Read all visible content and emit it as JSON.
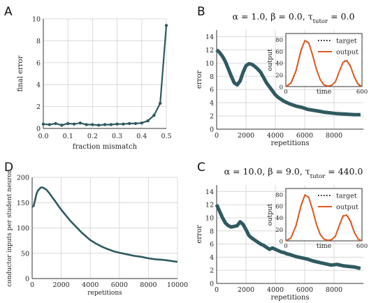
{
  "chart_data": [
    {
      "panel": "A",
      "type": "line",
      "xlabel": "fraction mismatch",
      "ylabel": "final error",
      "xlim": [
        0,
        0.5
      ],
      "ylim": [
        0,
        10
      ],
      "xticks": [
        "0.0",
        "0.1",
        "0.2",
        "0.3",
        "0.4",
        "0.5"
      ],
      "xtick_values": [
        0,
        0.1,
        0.2,
        0.3,
        0.4,
        0.5
      ],
      "yticks": [
        "0",
        "2",
        "4",
        "6",
        "8",
        "10"
      ],
      "ytick_values": [
        0,
        2,
        4,
        6,
        8,
        10
      ],
      "grid": true,
      "markers": true,
      "x": [
        0,
        0.025,
        0.05,
        0.075,
        0.1,
        0.125,
        0.15,
        0.175,
        0.2,
        0.225,
        0.25,
        0.275,
        0.3,
        0.325,
        0.35,
        0.375,
        0.4,
        0.425,
        0.45,
        0.475,
        0.5
      ],
      "values": [
        0.4,
        0.35,
        0.45,
        0.3,
        0.45,
        0.4,
        0.5,
        0.35,
        0.35,
        0.3,
        0.35,
        0.35,
        0.4,
        0.4,
        0.45,
        0.45,
        0.5,
        0.7,
        1.2,
        2.3,
        9.4
      ]
    },
    {
      "panel": "B",
      "type": "line",
      "title": "α = 1.0,  β = 0.0,  τ_tutor = 0.0",
      "xlabel": "repetitions",
      "ylabel": "error",
      "xlim": [
        0,
        10000
      ],
      "ylim": [
        0,
        15
      ],
      "xticks": [
        "0",
        "2000",
        "4000",
        "6000",
        "8000"
      ],
      "xtick_values": [
        0,
        2000,
        4000,
        6000,
        8000
      ],
      "yticks": [
        "0",
        "2",
        "4",
        "6",
        "8",
        "10",
        "12",
        "14"
      ],
      "ytick_values": [
        0,
        2,
        4,
        6,
        8,
        10,
        12,
        14
      ],
      "grid": true,
      "x": [
        0,
        200,
        400,
        600,
        800,
        1000,
        1200,
        1400,
        1600,
        1800,
        2000,
        2200,
        2400,
        2600,
        2800,
        3000,
        3200,
        3400,
        3600,
        3800,
        4000,
        4200,
        4400,
        4600,
        4800,
        5000,
        5400,
        5800,
        6200,
        6600,
        7000,
        7400,
        7800,
        8200,
        8600,
        9000,
        9400,
        9800
      ],
      "values": [
        12.0,
        11.6,
        11.0,
        10.2,
        9.1,
        8.0,
        7.0,
        6.7,
        7.3,
        8.6,
        9.6,
        9.9,
        9.8,
        9.5,
        9.1,
        8.6,
        7.8,
        7.0,
        6.4,
        5.8,
        5.2,
        4.8,
        4.5,
        4.2,
        4.0,
        3.8,
        3.5,
        3.3,
        3.0,
        2.85,
        2.7,
        2.55,
        2.45,
        2.35,
        2.3,
        2.25,
        2.2,
        2.2
      ],
      "inset": {
        "xlabel": "time",
        "ylabel": "output",
        "xlim": [
          0,
          600
        ],
        "ylim": [
          0,
          90
        ],
        "xticks": [
          "0",
          "600"
        ],
        "xtick_values": [
          0,
          600
        ],
        "yticks": [
          "0",
          "20",
          "40",
          "60",
          "80"
        ],
        "ytick_values": [
          0,
          20,
          40,
          60,
          80
        ],
        "legend": [
          "target",
          "output"
        ],
        "legend_position": "top-right",
        "series": [
          {
            "name": "target",
            "style": "dotted",
            "color": "#111111",
            "x": [
              0,
              40,
              80,
              120,
              150,
              180,
              210,
              240,
              270,
              300,
              330,
              360,
              390,
              420,
              450,
              480,
              510,
              540,
              570,
              600
            ],
            "values": [
              0,
              5,
              25,
              60,
              78,
              75,
              55,
              30,
              12,
              3,
              1,
              2,
              8,
              25,
              42,
              45,
              35,
              15,
              3,
              0
            ]
          },
          {
            "name": "output",
            "style": "solid",
            "color": "#e05a1e",
            "x": [
              0,
              40,
              80,
              120,
              150,
              180,
              210,
              240,
              270,
              300,
              330,
              360,
              390,
              420,
              450,
              480,
              510,
              540,
              570,
              600
            ],
            "values": [
              0,
              6,
              27,
              62,
              78,
              74,
              54,
              30,
              12,
              3,
              1,
              2,
              8,
              25,
              41,
              44,
              34,
              16,
              4,
              0
            ]
          }
        ]
      }
    },
    {
      "panel": "C",
      "type": "line",
      "title": "α = 10.0,  β = 9.0,  τ_tutor = 440.0",
      "xlabel": "repetitions",
      "ylabel": "error",
      "xlim": [
        0,
        10000
      ],
      "ylim": [
        0,
        15
      ],
      "xticks": [
        "0",
        "2000",
        "4000",
        "6000",
        "8000"
      ],
      "xtick_values": [
        0,
        2000,
        4000,
        6000,
        8000
      ],
      "yticks": [
        "0",
        "2",
        "4",
        "6",
        "8",
        "10",
        "12",
        "14"
      ],
      "ytick_values": [
        0,
        2,
        4,
        6,
        8,
        10,
        12,
        14
      ],
      "grid": true,
      "x": [
        0,
        200,
        400,
        600,
        800,
        1000,
        1200,
        1400,
        1600,
        1800,
        2000,
        2200,
        2400,
        2600,
        2800,
        3000,
        3200,
        3400,
        3600,
        3800,
        4000,
        4200,
        4400,
        4600,
        4800,
        5000,
        5400,
        5800,
        6200,
        6600,
        7000,
        7400,
        7800,
        8200,
        8600,
        9000,
        9400,
        9800
      ],
      "values": [
        12.0,
        11.0,
        10.0,
        9.2,
        8.8,
        8.6,
        8.7,
        8.8,
        9.4,
        9.0,
        8.2,
        7.3,
        6.9,
        6.6,
        6.3,
        6.0,
        5.8,
        5.5,
        5.2,
        5.4,
        5.2,
        5.0,
        4.8,
        4.7,
        4.5,
        4.4,
        4.1,
        3.9,
        3.7,
        3.4,
        3.2,
        3.0,
        2.8,
        2.9,
        2.7,
        2.6,
        2.5,
        2.3
      ],
      "inset": {
        "xlabel": "time",
        "ylabel": "output",
        "xlim": [
          0,
          600
        ],
        "ylim": [
          0,
          90
        ],
        "xticks": [
          "0",
          "600"
        ],
        "xtick_values": [
          0,
          600
        ],
        "yticks": [
          "0",
          "20",
          "40",
          "60",
          "80"
        ],
        "ytick_values": [
          0,
          20,
          40,
          60,
          80
        ],
        "legend": [
          "target",
          "output"
        ],
        "legend_position": "top-right",
        "series": [
          {
            "name": "target",
            "style": "dotted",
            "color": "#111111",
            "x": [
              0,
              40,
              80,
              120,
              150,
              180,
              210,
              240,
              270,
              300,
              330,
              360,
              390,
              420,
              450,
              480,
              510,
              540,
              570,
              600
            ],
            "values": [
              0,
              5,
              25,
              60,
              78,
              75,
              55,
              30,
              12,
              3,
              1,
              2,
              8,
              25,
              42,
              45,
              35,
              15,
              3,
              0
            ]
          },
          {
            "name": "output",
            "style": "solid",
            "color": "#e05a1e",
            "x": [
              0,
              40,
              80,
              120,
              150,
              180,
              210,
              240,
              270,
              300,
              330,
              360,
              390,
              420,
              450,
              480,
              510,
              540,
              570,
              600
            ],
            "values": [
              0,
              5,
              26,
              61,
              79,
              75,
              54,
              29,
              11,
              3,
              1,
              2,
              8,
              26,
              43,
              44,
              33,
              14,
              3,
              0
            ]
          }
        ]
      }
    },
    {
      "panel": "D",
      "type": "line",
      "xlabel": "repetitions",
      "ylabel": "conductor inputs per student neuron",
      "xlim": [
        0,
        10000
      ],
      "ylim": [
        0,
        200
      ],
      "xticks": [
        "0",
        "2000",
        "4000",
        "6000",
        "8000",
        "10000"
      ],
      "xtick_values": [
        0,
        2000,
        4000,
        6000,
        8000,
        10000
      ],
      "yticks": [
        "0",
        "50",
        "100",
        "150",
        "200"
      ],
      "ytick_values": [
        0,
        50,
        100,
        150,
        200
      ],
      "grid": true,
      "x": [
        0,
        100,
        200,
        300,
        400,
        500,
        600,
        700,
        800,
        900,
        1000,
        1200,
        1400,
        1600,
        1800,
        2000,
        2200,
        2400,
        2600,
        2800,
        3000,
        3200,
        3400,
        3600,
        3800,
        4000,
        4400,
        4800,
        5200,
        5600,
        6000,
        6500,
        7000,
        7500,
        8000,
        8500,
        9000,
        9500,
        10000
      ],
      "values": [
        142,
        143,
        155,
        167,
        174,
        177,
        180,
        180,
        179,
        177,
        175,
        168,
        160,
        152,
        144,
        136,
        129,
        122,
        115,
        109,
        103,
        97,
        91,
        86,
        81,
        76,
        69,
        63,
        58,
        54,
        51,
        48,
        45,
        43,
        40,
        38,
        37,
        35,
        33
      ]
    }
  ],
  "panels": {
    "A": {
      "letter": "A"
    },
    "B": {
      "letter": "B"
    },
    "C": {
      "letter": "C"
    },
    "D": {
      "letter": "D"
    }
  },
  "colors": {
    "main_line": "#2f5a60",
    "output_line": "#e05a1e",
    "target_line": "#111111",
    "grid": "#d9d9d9"
  }
}
